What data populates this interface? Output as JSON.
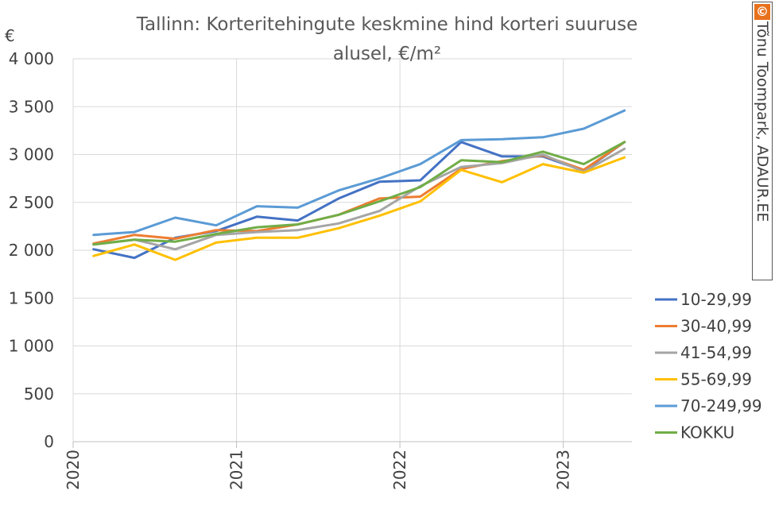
{
  "chart_data": {
    "type": "line",
    "title": "Tallinn: Korteritehingute keskmine hind korteri suuruse alusel, €/m²",
    "title_lines": [
      "Tallinn: Korteritehingute keskmine hind korteri suuruse",
      "alusel, €/m²"
    ],
    "ylabel": "€",
    "xlabel": "",
    "ylim": [
      0,
      4000
    ],
    "ytick_labels": [
      "0",
      "500",
      "1 000",
      "1 500",
      "2 000",
      "2 500",
      "3 000",
      "3 500",
      "4 000"
    ],
    "ytick_values": [
      0,
      500,
      1000,
      1500,
      2000,
      2500,
      3000,
      3500,
      4000
    ],
    "xtick_labels": [
      "2020",
      "2021",
      "2022",
      "2023"
    ],
    "x_range": [
      2020.0,
      2023.42
    ],
    "x": [
      2020.125,
      2020.375,
      2020.625,
      2020.875,
      2021.125,
      2021.375,
      2021.625,
      2021.875,
      2022.125,
      2022.375,
      2022.625,
      2022.875,
      2023.125,
      2023.375
    ],
    "grid": "vertical and horizontal",
    "legend_position": "right",
    "series": [
      {
        "name": "10-29,99",
        "color": "#4472c4",
        "values": [
          2010,
          1920,
          2130,
          2200,
          2350,
          2310,
          2540,
          2715,
          2730,
          3130,
          2980,
          2980,
          2830,
          3130
        ]
      },
      {
        "name": "30-40,99",
        "color": "#ed7d31",
        "values": [
          2070,
          2160,
          2120,
          2210,
          2200,
          2270,
          2370,
          2540,
          2560,
          2850,
          2930,
          2990,
          2840,
          3130
        ]
      },
      {
        "name": "41-54,99",
        "color": "#a5a5a5",
        "values": [
          2060,
          2110,
          2010,
          2160,
          2190,
          2210,
          2280,
          2410,
          2670,
          2870,
          2910,
          3000,
          2820,
          3060
        ]
      },
      {
        "name": "55-69,99",
        "color": "#ffc000",
        "values": [
          1940,
          2060,
          1900,
          2080,
          2130,
          2130,
          2230,
          2360,
          2510,
          2840,
          2710,
          2900,
          2810,
          2970
        ]
      },
      {
        "name": "70-249,99",
        "color": "#5b9bd5",
        "values": [
          2160,
          2190,
          2340,
          2260,
          2460,
          2445,
          2625,
          2750,
          2900,
          3150,
          3160,
          3180,
          3270,
          3460
        ]
      },
      {
        "name": "KOKKU",
        "color": "#70ad47",
        "values": [
          2060,
          2110,
          2090,
          2170,
          2240,
          2270,
          2370,
          2510,
          2660,
          2940,
          2920,
          3030,
          2900,
          3130
        ]
      }
    ]
  },
  "credit": {
    "symbol": "©",
    "text": "Tõnu Toompark, ADAUR.EE"
  }
}
